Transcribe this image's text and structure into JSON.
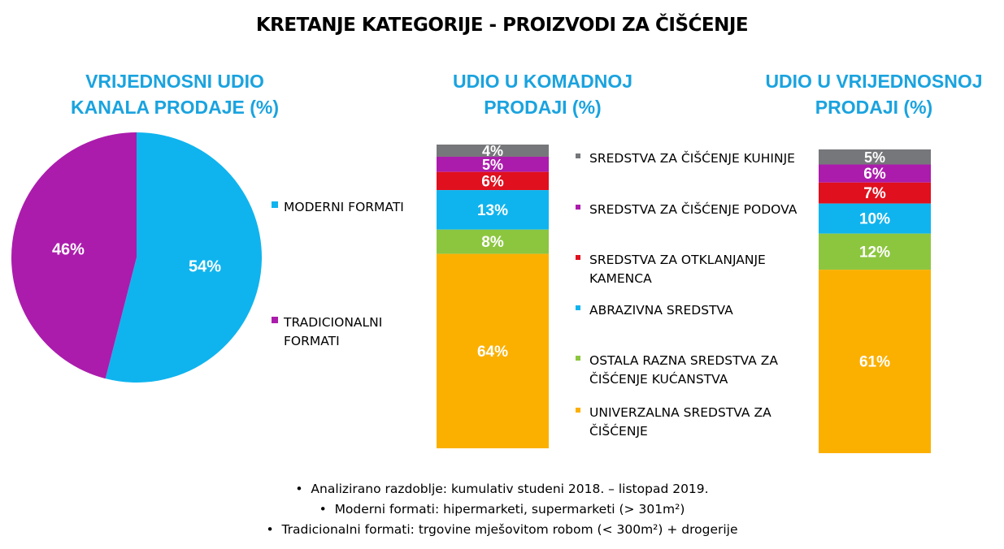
{
  "title": "KRETANJE KATEGORIJE - PROIZVODI ZA ČIŠĆENJE",
  "pie_title": "VRIJEDNOSNI UDIO\nKANALA PRODAJE (%)",
  "bar1_title": "UDIO U KOMADNOJ\nPRODAJI (%)",
  "bar2_title": "UDIO U VRIJEDNOSNOJ\nPRODAJI (%)",
  "colors": {
    "moderni": "#0fb4ee",
    "tradicionalni": "#ab1cac",
    "kuhinje": "#76777a",
    "podova": "#ab1cac",
    "kamenca": "#e0101e",
    "abrazivna": "#0fb4ee",
    "ostala": "#8cc63f",
    "univerzalna": "#fbb000"
  },
  "chart_data": [
    {
      "type": "pie",
      "title": "VRIJEDNOSNI UDIO KANALA PRODAJE (%)",
      "slices": [
        {
          "name": "MODERNI FORMATI",
          "value": 54,
          "label": "54%",
          "color": "#0fb4ee"
        },
        {
          "name": "TRADICIONALNI FORMATI",
          "value": 46,
          "label": "46%",
          "color": "#ab1cac"
        }
      ],
      "legend": "right"
    },
    {
      "type": "bar",
      "stacked": true,
      "title": "UDIO U KOMADNOJ PRODAJI (%)",
      "series": [
        {
          "name": "SREDSTVA ZA ČIŠĆENJE KUHINJE",
          "value": 4,
          "label": "4%"
        },
        {
          "name": "SREDSTVA ZA ČIŠĆENJE PODOVA",
          "value": 5,
          "label": "5%"
        },
        {
          "name": "SREDSTVA ZA OTKLANJANJE KAMENCA",
          "value": 6,
          "label": "6%"
        },
        {
          "name": "ABRAZIVNA SREDSTVA",
          "value": 13,
          "label": "13%"
        },
        {
          "name": "OSTALA RAZNA SREDSTVA ZA ČIŠĆENJE KUĆANSTVA",
          "value": 8,
          "label": "8%"
        },
        {
          "name": "UNIVERZALNA SREDSTVA ZA ČIŠĆENJE",
          "value": 64,
          "label": "64%"
        }
      ]
    },
    {
      "type": "bar",
      "stacked": true,
      "title": "UDIO U VRIJEDNOSNOJ PRODAJI (%)",
      "series": [
        {
          "name": "SREDSTVA ZA ČIŠĆENJE KUHINJE",
          "value": 5,
          "label": "5%"
        },
        {
          "name": "SREDSTVA ZA ČIŠĆENJE PODOVA",
          "value": 6,
          "label": "6%"
        },
        {
          "name": "SREDSTVA ZA OTKLANJANJE KAMENCA",
          "value": 7,
          "label": "7%"
        },
        {
          "name": "ABRAZIVNA SREDSTVA",
          "value": 10,
          "label": "10%"
        },
        {
          "name": "OSTALA RAZNA SREDSTVA ZA ČIŠĆENJE KUĆANSTVA",
          "value": 12,
          "label": "12%"
        },
        {
          "name": "UNIVERZALNA SREDSTVA ZA ČIŠĆENJE",
          "value": 61,
          "label": "61%"
        }
      ]
    }
  ],
  "pie_legend": [
    {
      "lines": [
        "MODERNI FORMATI"
      ],
      "color": "#0fb4ee"
    },
    {
      "lines": [
        "TRADICIONALNI",
        "FORMATI"
      ],
      "color": "#ab1cac"
    }
  ],
  "bar_legend": [
    {
      "lines": [
        "SREDSTVA ZA ČIŠĆENJE KUHINJE"
      ],
      "color": "#76777a"
    },
    {
      "lines": [
        "SREDSTVA ZA ČIŠĆENJE PODOVA"
      ],
      "color": "#ab1cac"
    },
    {
      "lines": [
        "SREDSTVA ZA OTKLANJANJE",
        "KAMENCA"
      ],
      "color": "#e0101e"
    },
    {
      "lines": [
        "ABRAZIVNA SREDSTVA"
      ],
      "color": "#0fb4ee"
    },
    {
      "lines": [
        "OSTALA RAZNA SREDSTVA ZA",
        "ČIŠĆENJE KUĆANSTVA"
      ],
      "color": "#8cc63f"
    },
    {
      "lines": [
        "UNIVERZALNA SREDSTVA ZA",
        "ČIŠĆENJE"
      ],
      "color": "#fbb000"
    }
  ],
  "footnotes": [
    "Analizirano razdoblje: kumulativ studeni 2018. – listopad 2019.",
    "Moderni formati: hipermarketi, supermarketi (> 301m²)",
    "Tradicionalni formati: trgovine mješovitom robom (< 300m²) + drogerije"
  ]
}
